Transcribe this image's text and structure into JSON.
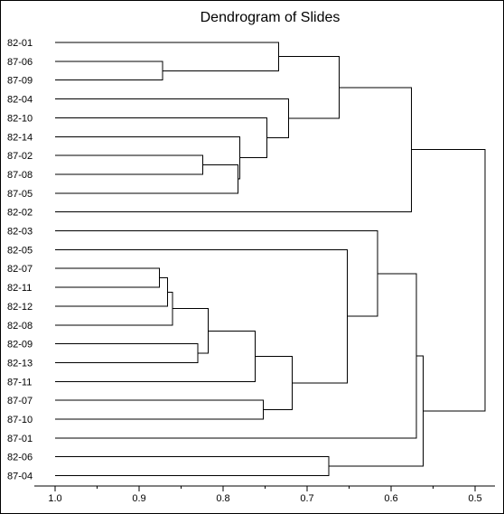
{
  "chart_data": {
    "type": "dendrogram",
    "title": "Dendrogram of Slides",
    "xlabel": "",
    "ylabel": "",
    "orientation": "horizontal",
    "xlim": [
      1.0,
      0.49
    ],
    "x_ticks": [
      1.0,
      0.9,
      0.8,
      0.7,
      0.6,
      0.5
    ],
    "x_tick_labels": [
      "1.0",
      "0.9",
      "0.8",
      "0.7",
      "0.6",
      "0.5"
    ],
    "leaves": [
      "82-01",
      "87-06",
      "87-09",
      "82-04",
      "82-10",
      "82-14",
      "87-02",
      "87-08",
      "87-05",
      "82-02",
      "82-03",
      "82-05",
      "82-07",
      "82-11",
      "82-12",
      "82-08",
      "82-09",
      "82-13",
      "87-11",
      "87-07",
      "87-10",
      "87-01",
      "82-06",
      "87-04"
    ],
    "merges": [
      {
        "id": "m1",
        "left": "87-06",
        "right": "87-09",
        "height": 0.872
      },
      {
        "id": "m2",
        "left": "82-01",
        "right": "m1",
        "height": 0.734
      },
      {
        "id": "m3",
        "left": "87-02",
        "right": "87-08",
        "height": 0.824
      },
      {
        "id": "m4",
        "left": "m3",
        "right": "87-05",
        "height": 0.782
      },
      {
        "id": "m5",
        "left": "82-14",
        "right": "m4",
        "height": 0.78
      },
      {
        "id": "m6",
        "left": "82-10",
        "right": "m5",
        "height": 0.748
      },
      {
        "id": "m7",
        "left": "82-04",
        "right": "m6",
        "height": 0.722
      },
      {
        "id": "m8",
        "left": "m2",
        "right": "m7",
        "height": 0.662
      },
      {
        "id": "m9",
        "left": "m8",
        "right": "82-02",
        "height": 0.576
      },
      {
        "id": "m10",
        "left": "82-07",
        "right": "82-11",
        "height": 0.876
      },
      {
        "id": "m11",
        "left": "m10",
        "right": "82-12",
        "height": 0.866
      },
      {
        "id": "m12",
        "left": "m11",
        "right": "82-08",
        "height": 0.86
      },
      {
        "id": "m13",
        "left": "82-09",
        "right": "82-13",
        "height": 0.83
      },
      {
        "id": "m14",
        "left": "m12",
        "right": "m13",
        "height": 0.818
      },
      {
        "id": "m15",
        "left": "m14",
        "right": "87-11",
        "height": 0.762
      },
      {
        "id": "m16",
        "left": "87-07",
        "right": "87-10",
        "height": 0.752
      },
      {
        "id": "m17",
        "left": "m15",
        "right": "m16",
        "height": 0.718
      },
      {
        "id": "m18",
        "left": "82-05",
        "right": "m17",
        "height": 0.652
      },
      {
        "id": "m19",
        "left": "82-03",
        "right": "m18",
        "height": 0.616
      },
      {
        "id": "m20",
        "left": "m19",
        "right": "87-01",
        "height": 0.57
      },
      {
        "id": "m21",
        "left": "82-06",
        "right": "87-04",
        "height": 0.674
      },
      {
        "id": "m22",
        "left": "m20",
        "right": "m21",
        "height": 0.562
      },
      {
        "id": "m23",
        "left": "m9",
        "right": "m22",
        "height": 0.488
      }
    ]
  }
}
